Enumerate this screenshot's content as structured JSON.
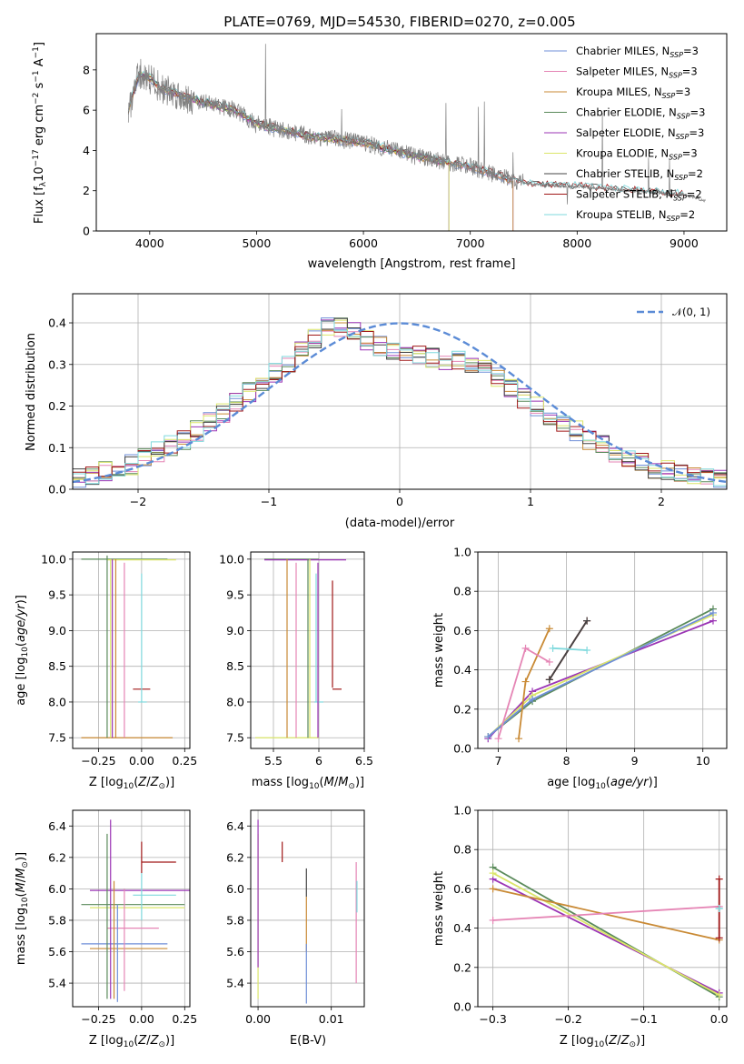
{
  "figure_title": "PLATE=0769, MJD=54530, FIBERID=0270, z=0.005",
  "colors": {
    "Chabrier MILES": "#6f8fd8",
    "Salpeter MILES": "#e585b5",
    "Kroupa MILES": "#c98a35",
    "Chabrier ELODIE": "#5a8a5a",
    "Salpeter ELODIE": "#9b35b5",
    "Kroupa ELODIE": "#dbe66a",
    "Chabrier STELIB": "#444444",
    "Salpeter STELIB": "#a01818",
    "Kroupa STELIB": "#7fd9dd",
    "data": "#808080",
    "normal": "#5b8bd6"
  },
  "chart_data": [
    {
      "type": "line",
      "title": "PLATE=0769, MJD=54530, FIBERID=0270, z=0.005",
      "xlabel": "wavelength [Angstrom, rest frame]",
      "ylabel": "Flux [f_λ10^−17 erg cm^−2 s^−1 A^−1]",
      "xlim": [
        3500,
        9400
      ],
      "ylim": [
        0,
        9.8
      ],
      "xticks": [
        4000,
        5000,
        6000,
        7000,
        8000,
        9000
      ],
      "yticks": [
        0,
        2,
        4,
        6,
        8
      ],
      "legend_position": "top-right",
      "legend": [
        "Chabrier MILES, N_SSP=3",
        "Salpeter MILES, N_SSP=3",
        "Kroupa MILES, N_SSP=3",
        "Chabrier ELODIE, N_SSP=3",
        "Salpeter ELODIE, N_SSP=3",
        "Kroupa ELODIE, N_SSP=3",
        "Chabrier STELIB, N_SSP=2",
        "Salpeter STELIB, N_SSP=2",
        "Kroupa STELIB, N_SSP=2"
      ],
      "continuum": {
        "x": [
          3800,
          3900,
          4000,
          4100,
          4300,
          4500,
          4800,
          5000,
          5500,
          6000,
          6500,
          7000,
          7400,
          7600,
          8000,
          8500,
          9000,
          9200
        ],
        "y": [
          6.0,
          7.8,
          7.6,
          7.1,
          6.7,
          6.4,
          6.0,
          5.3,
          4.7,
          4.4,
          3.7,
          3.2,
          2.5,
          2.3,
          2.2,
          2.0,
          1.8,
          1.5
        ]
      },
      "data_range": [
        3800,
        9200
      ],
      "model_ranges": {
        "MILES": [
          3800,
          7400
        ],
        "ELODIE": [
          3900,
          6800
        ],
        "STELIB": [
          3800,
          9000
        ]
      }
    },
    {
      "type": "histogram",
      "xlabel": "(data-model)/error",
      "ylabel": "Normed distribution",
      "xlim": [
        -2.5,
        2.5
      ],
      "ylim": [
        0,
        0.47
      ],
      "xticks": [
        -2,
        -1,
        0,
        1,
        2
      ],
      "yticks": [
        0.0,
        0.1,
        0.2,
        0.3,
        0.4
      ],
      "legend_position": "top-right",
      "legend": [
        "𝒩(0, 1)"
      ],
      "bin_edges_range": [
        -2.5,
        2.5
      ],
      "bins": 50,
      "reference_curve": "normal(0,1)",
      "base_profile": [
        0.025,
        0.035,
        0.045,
        0.05,
        0.06,
        0.075,
        0.09,
        0.105,
        0.12,
        0.14,
        0.16,
        0.185,
        0.21,
        0.235,
        0.26,
        0.28,
        0.3,
        0.33,
        0.36,
        0.39,
        0.39,
        0.38,
        0.36,
        0.345,
        0.33,
        0.32,
        0.32,
        0.315,
        0.31,
        0.31,
        0.3,
        0.295,
        0.27,
        0.24,
        0.22,
        0.2,
        0.18,
        0.16,
        0.14,
        0.12,
        0.105,
        0.09,
        0.075,
        0.065,
        0.05,
        0.045,
        0.035,
        0.03,
        0.025,
        0.025
      ]
    },
    {
      "type": "errorbar",
      "xlabel": "Z [log10(Z/Z⊙)]",
      "ylabel": "age [log10(age/yr)]",
      "xlim": [
        -0.4,
        0.28
      ],
      "ylim": [
        7.35,
        10.1
      ],
      "xticks": [
        -0.25,
        0.0,
        0.25
      ],
      "yticks": [
        7.5,
        8.0,
        8.5,
        9.0,
        9.5,
        10.0
      ],
      "hbars": [
        [
          -0.35,
          0.15,
          10.0,
          "Chabrier ELODIE"
        ],
        [
          -0.2,
          0.2,
          9.99,
          "Kroupa ELODIE"
        ],
        [
          -0.35,
          0.18,
          7.5,
          "Kroupa MILES"
        ],
        [
          -0.05,
          0.05,
          8.18,
          "Salpeter STELIB"
        ],
        [
          -0.02,
          0.03,
          8.0,
          "Kroupa STELIB"
        ]
      ],
      "vbars": [
        [
          -0.2,
          7.5,
          10.05,
          "Chabrier ELODIE"
        ],
        [
          -0.18,
          7.5,
          10.0,
          "Kroupa ELODIE"
        ],
        [
          -0.15,
          7.5,
          10.0,
          "Kroupa MILES"
        ],
        [
          -0.1,
          7.5,
          9.95,
          "Salpeter MILES"
        ],
        [
          0.0,
          8.0,
          9.8,
          "Kroupa STELIB"
        ],
        [
          -0.17,
          7.5,
          10.0,
          "Salpeter ELODIE"
        ]
      ]
    },
    {
      "type": "errorbar",
      "xlabel": "mass [log10(M/M⊙)]",
      "xlim": [
        5.25,
        6.5
      ],
      "ylim": [
        7.35,
        10.1
      ],
      "xticks": [
        5.5,
        6.0,
        6.5
      ],
      "yticks": [
        7.5,
        8.0,
        8.5,
        9.0,
        9.5,
        10.0
      ],
      "hbars": [
        [
          5.4,
          6.0,
          10.0,
          "Chabrier ELODIE"
        ],
        [
          5.4,
          6.3,
          9.99,
          "Salpeter ELODIE"
        ],
        [
          5.3,
          6.0,
          7.5,
          "Kroupa ELODIE"
        ],
        [
          5.95,
          6.05,
          8.0,
          "Kroupa STELIB"
        ],
        [
          6.15,
          6.25,
          8.18,
          "Salpeter STELIB"
        ]
      ],
      "vbars": [
        [
          5.65,
          7.5,
          10.0,
          "Kroupa MILES"
        ],
        [
          5.75,
          7.5,
          9.95,
          "Salpeter MILES"
        ],
        [
          5.88,
          7.5,
          10.0,
          "Chabrier ELODIE"
        ],
        [
          5.9,
          7.5,
          10.0,
          "Kroupa ELODIE"
        ],
        [
          5.99,
          7.5,
          9.95,
          "Salpeter ELODIE"
        ],
        [
          5.97,
          8.0,
          9.8,
          "Kroupa STELIB"
        ],
        [
          6.15,
          8.2,
          9.7,
          "Salpeter STELIB"
        ]
      ]
    },
    {
      "type": "line",
      "xlabel": "age [log10(age/yr)]",
      "ylabel": "mass weight",
      "xlim": [
        6.7,
        10.35
      ],
      "ylim": [
        0.0,
        1.0
      ],
      "xticks": [
        7,
        8,
        9,
        10
      ],
      "yticks": [
        0.0,
        0.2,
        0.4,
        0.6,
        0.8,
        1.0
      ],
      "series": [
        {
          "name": "Chabrier ELODIE",
          "x": [
            6.85,
            7.5,
            10.15
          ],
          "y": [
            0.06,
            0.24,
            0.71
          ]
        },
        {
          "name": "Salpeter ELODIE",
          "x": [
            6.85,
            7.5,
            10.15
          ],
          "y": [
            0.05,
            0.29,
            0.65
          ]
        },
        {
          "name": "Kroupa ELODIE",
          "x": [
            6.85,
            7.5,
            10.15
          ],
          "y": [
            0.06,
            0.27,
            0.68
          ]
        },
        {
          "name": "Chabrier MILES",
          "x": [
            6.85,
            7.5,
            10.15
          ],
          "y": [
            0.06,
            0.25,
            0.69
          ]
        },
        {
          "name": "Kroupa MILES",
          "x": [
            7.3,
            7.4,
            7.75
          ],
          "y": [
            0.05,
            0.34,
            0.61
          ]
        },
        {
          "name": "Salpeter MILES",
          "x": [
            7.0,
            7.4,
            7.75
          ],
          "y": [
            0.05,
            0.51,
            0.44
          ]
        },
        {
          "name": "Salpeter STELIB",
          "x": [
            7.75,
            8.3
          ],
          "y": [
            0.35,
            0.65
          ]
        },
        {
          "name": "Chabrier STELIB",
          "x": [
            7.75,
            8.3
          ],
          "y": [
            0.35,
            0.65
          ]
        },
        {
          "name": "Kroupa STELIB",
          "x": [
            7.8,
            8.3
          ],
          "y": [
            0.51,
            0.5
          ]
        }
      ]
    },
    {
      "type": "errorbar",
      "xlabel": "Z [log10(Z/Z⊙)]",
      "ylabel": "mass [log10(M/M⊙)]",
      "xlim": [
        -0.4,
        0.28
      ],
      "ylim": [
        5.25,
        6.5
      ],
      "xticks": [
        -0.25,
        0.0,
        0.25
      ],
      "yticks": [
        5.4,
        5.6,
        5.8,
        6.0,
        6.2,
        6.4
      ],
      "hbars": [
        [
          -0.3,
          0.3,
          5.99,
          "Salpeter ELODIE"
        ],
        [
          -0.35,
          0.25,
          5.9,
          "Chabrier ELODIE"
        ],
        [
          -0.3,
          0.25,
          5.88,
          "Kroupa ELODIE"
        ],
        [
          -0.35,
          0.15,
          5.65,
          "Chabrier MILES"
        ],
        [
          -0.3,
          0.15,
          5.62,
          "Kroupa MILES"
        ],
        [
          -0.2,
          0.1,
          5.75,
          "Salpeter MILES"
        ],
        [
          0.0,
          0.2,
          6.17,
          "Salpeter STELIB"
        ],
        [
          -0.05,
          0.2,
          5.96,
          "Kroupa STELIB"
        ]
      ],
      "vbars": [
        [
          -0.2,
          5.3,
          6.35,
          "Chabrier ELODIE"
        ],
        [
          -0.18,
          5.3,
          6.44,
          "Salpeter ELODIE"
        ],
        [
          -0.16,
          5.3,
          6.05,
          "Kroupa MILES"
        ],
        [
          -0.1,
          5.35,
          6.0,
          "Salpeter MILES"
        ],
        [
          -0.14,
          5.28,
          5.9,
          "Chabrier MILES"
        ],
        [
          0.0,
          6.1,
          6.3,
          "Salpeter STELIB"
        ],
        [
          0.0,
          5.8,
          6.1,
          "Kroupa STELIB"
        ]
      ]
    },
    {
      "type": "errorbar",
      "xlabel": "E(B-V)",
      "xlim": [
        -0.001,
        0.0145
      ],
      "ylim": [
        5.25,
        6.5
      ],
      "xticks": [
        0.0,
        0.01
      ],
      "yticks": [
        5.4,
        5.6,
        5.8,
        6.0,
        6.2,
        6.4
      ],
      "vbars": [
        [
          0.0,
          5.3,
          6.35,
          "Kroupa ELODIE"
        ],
        [
          0.0,
          5.5,
          6.44,
          "Salpeter ELODIE"
        ],
        [
          0.0033,
          6.17,
          6.3,
          "Salpeter STELIB"
        ],
        [
          0.0066,
          5.95,
          6.13,
          "Chabrier STELIB"
        ],
        [
          0.0066,
          5.6,
          5.95,
          "Kroupa MILES"
        ],
        [
          0.0066,
          5.27,
          5.65,
          "Chabrier MILES"
        ],
        [
          0.0134,
          5.4,
          6.17,
          "Salpeter MILES"
        ],
        [
          0.0135,
          5.85,
          6.05,
          "Kroupa STELIB"
        ]
      ]
    },
    {
      "type": "line",
      "xlabel": "Z [log10(Z/Z⊙)]",
      "ylabel": "mass weight",
      "xlim": [
        -0.32,
        0.01
      ],
      "ylim": [
        0.0,
        1.0
      ],
      "xticks": [
        -0.3,
        -0.2,
        -0.1,
        0.0
      ],
      "yticks": [
        0.0,
        0.2,
        0.4,
        0.6,
        0.8,
        1.0
      ],
      "series": [
        {
          "name": "Chabrier ELODIE",
          "x": [
            -0.3,
            0.0
          ],
          "y": [
            0.71,
            0.05
          ]
        },
        {
          "name": "Salpeter ELODIE",
          "x": [
            -0.3,
            0.0
          ],
          "y": [
            0.65,
            0.07
          ]
        },
        {
          "name": "Kroupa ELODIE",
          "x": [
            -0.3,
            0.0
          ],
          "y": [
            0.68,
            0.06
          ]
        },
        {
          "name": "Kroupa MILES",
          "x": [
            -0.3,
            0.0
          ],
          "y": [
            0.6,
            0.34
          ]
        },
        {
          "name": "Salpeter MILES",
          "x": [
            -0.3,
            0.0
          ],
          "y": [
            0.44,
            0.51
          ]
        },
        {
          "name": "Salpeter STELIB",
          "x": [
            0.0,
            0.0
          ],
          "y": [
            0.35,
            0.65
          ]
        },
        {
          "name": "Kroupa STELIB",
          "x": [
            0.0,
            0.0
          ],
          "y": [
            0.5,
            0.5
          ]
        }
      ]
    }
  ]
}
